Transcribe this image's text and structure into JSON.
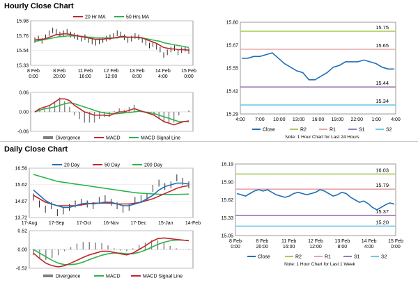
{
  "page": {
    "hourly_title": "Hourly Close Chart",
    "daily_title": "Daily Close Chart"
  },
  "colors": {
    "red": "#c0262d",
    "green": "#2ab34a",
    "blue": "#1f6fb4",
    "gray": "#808080",
    "r2": "#a6cc55",
    "r1": "#e8a6a6",
    "s1": "#9a78b8",
    "s2": "#6fc7e6"
  },
  "chart_data": [
    {
      "id": "hourly-price",
      "type": "line",
      "legend": [
        "20 Hr MA",
        "50 Hrs MA"
      ],
      "ylim": [
        15.33,
        15.98
      ],
      "y_ticks": [
        "15.98",
        "15.76",
        "15.54",
        "15.33"
      ],
      "x_ticks": [
        [
          "8 Feb",
          "0:00"
        ],
        [
          "8 Feb",
          "20:00"
        ],
        [
          "11 Feb",
          "16:00"
        ],
        [
          "12 Feb",
          "12:00"
        ],
        [
          "13 Feb",
          "8:00"
        ],
        [
          "14 Feb",
          "4:00"
        ],
        [
          "15 Feb",
          "0:00"
        ]
      ],
      "price": [
        15.7,
        15.72,
        15.69,
        15.74,
        15.8,
        15.84,
        15.82,
        15.78,
        15.8,
        15.82,
        15.78,
        15.76,
        15.74,
        15.72,
        15.74,
        15.7,
        15.68,
        15.66,
        15.68,
        15.7,
        15.72,
        15.74,
        15.76,
        15.8,
        15.78,
        15.74,
        15.7,
        15.72,
        15.76,
        15.74,
        15.7,
        15.66,
        15.62,
        15.64,
        15.6,
        15.56,
        15.48,
        15.52,
        15.56,
        15.58,
        15.52,
        15.55,
        15.57,
        15.54
      ],
      "ma20": [
        15.7,
        15.71,
        15.71,
        15.72,
        15.74,
        15.76,
        15.78,
        15.78,
        15.79,
        15.79,
        15.78,
        15.77,
        15.76,
        15.75,
        15.74,
        15.73,
        15.72,
        15.71,
        15.71,
        15.71,
        15.72,
        15.72,
        15.73,
        15.74,
        15.75,
        15.75,
        15.74,
        15.74,
        15.74,
        15.74,
        15.73,
        15.71,
        15.69,
        15.67,
        15.65,
        15.62,
        15.59,
        15.58,
        15.57,
        15.57,
        15.56,
        15.56,
        15.56,
        15.55
      ],
      "ma50": [
        15.68,
        15.69,
        15.7,
        15.71,
        15.72,
        15.73,
        15.74,
        15.75,
        15.75,
        15.76,
        15.76,
        15.76,
        15.76,
        15.75,
        15.75,
        15.74,
        15.74,
        15.73,
        15.73,
        15.73,
        15.73,
        15.73,
        15.73,
        15.73,
        15.74,
        15.74,
        15.74,
        15.74,
        15.74,
        15.73,
        15.73,
        15.72,
        15.71,
        15.7,
        15.69,
        15.68,
        15.66,
        15.65,
        15.64,
        15.63,
        15.62,
        15.61,
        15.6,
        15.59
      ]
    },
    {
      "id": "hourly-macd",
      "type": "line",
      "legend": [
        "Divergence",
        "MACD",
        "MACD Signal Line"
      ],
      "ylim": [
        -0.06,
        0.06
      ],
      "y_ticks": [
        "0.06",
        "0.00",
        "-0.06"
      ],
      "macd": [
        0.0,
        0.01,
        0.015,
        0.02,
        0.03,
        0.04,
        0.04,
        0.035,
        0.02,
        0.01,
        0.0,
        -0.005,
        -0.01,
        -0.01,
        -0.01,
        -0.012,
        -0.005,
        0.0,
        0.0,
        0.005,
        0.01,
        0.005,
        0.0,
        -0.005,
        -0.01,
        -0.02,
        -0.03,
        -0.035,
        -0.04,
        -0.035,
        -0.03,
        -0.028
      ],
      "signal": [
        0.0,
        0.005,
        0.01,
        0.012,
        0.015,
        0.02,
        0.025,
        0.028,
        0.025,
        0.02,
        0.015,
        0.01,
        0.005,
        0.0,
        -0.003,
        -0.005,
        -0.006,
        -0.005,
        -0.003,
        -0.002,
        0.0,
        0.002,
        0.0,
        -0.002,
        -0.005,
        -0.01,
        -0.015,
        -0.02,
        -0.025,
        -0.03,
        -0.03,
        -0.03
      ]
    },
    {
      "id": "hourly-levels",
      "type": "line",
      "legend": [
        "Close",
        "R2",
        "R1",
        "S1",
        "S2"
      ],
      "ylim": [
        15.29,
        15.8
      ],
      "y_ticks": [
        "15.80",
        "15.67",
        "15.55",
        "15.42",
        "15.29"
      ],
      "x_ticks": [
        "4:00",
        "7:00",
        "10:00",
        "13:00",
        "16:00",
        "19:00",
        "22:00",
        "1:00",
        "4:00"
      ],
      "levels": {
        "R2": 15.75,
        "R1": 15.65,
        "S1": 15.44,
        "S2": 15.34
      },
      "level_labels": {
        "R2": "15.75",
        "R1": "15.65",
        "S1": "15.44",
        "S2": "15.34"
      },
      "close": [
        15.6,
        15.6,
        15.61,
        15.61,
        15.62,
        15.63,
        15.6,
        15.57,
        15.55,
        15.53,
        15.52,
        15.48,
        15.48,
        15.5,
        15.52,
        15.55,
        15.56,
        15.58,
        15.58,
        15.58,
        15.59,
        15.58,
        15.57,
        15.55,
        15.54,
        15.54
      ],
      "note": "Note: 1 Hour Chart for Last 24 Hours"
    },
    {
      "id": "daily-price",
      "type": "line",
      "legend": [
        "20 Day",
        "50 Day",
        "200 Day"
      ],
      "ylim": [
        13.72,
        16.56
      ],
      "y_ticks": [
        "16.56",
        "15.62",
        "14.67",
        "13.72"
      ],
      "x_ticks": [
        "17-Aug",
        "17-Sep",
        "17-Oct",
        "16-Nov",
        "17-Dec",
        "15-Jan",
        "14-Feb"
      ],
      "price": [
        14.9,
        14.5,
        14.2,
        14.4,
        14.0,
        14.1,
        14.3,
        14.5,
        14.6,
        14.5,
        14.4,
        14.7,
        14.8,
        14.6,
        14.4,
        14.2,
        14.3,
        14.7,
        14.8,
        14.9,
        15.4,
        15.7,
        15.5,
        15.6,
        16.0,
        15.8,
        15.6
      ],
      "ma20": [
        15.3,
        15.0,
        14.7,
        14.5,
        14.4,
        14.3,
        14.3,
        14.4,
        14.5,
        14.55,
        14.5,
        14.55,
        14.6,
        14.6,
        14.5,
        14.4,
        14.4,
        14.5,
        14.6,
        14.8,
        15.0,
        15.3,
        15.5,
        15.6,
        15.7,
        15.7,
        15.65
      ],
      "ma50": [
        15.0,
        14.8,
        14.6,
        14.5,
        14.4,
        14.4,
        14.4,
        14.4,
        14.45,
        14.5,
        14.55,
        14.55,
        14.55,
        14.55,
        14.5,
        14.5,
        14.5,
        14.55,
        14.6,
        14.7,
        14.8,
        14.95,
        15.1,
        15.25,
        15.4,
        15.5,
        15.55
      ],
      "ma200": [
        16.2,
        16.1,
        16.0,
        15.9,
        15.8,
        15.75,
        15.7,
        15.65,
        15.6,
        15.55,
        15.5,
        15.45,
        15.4,
        15.35,
        15.3,
        15.25,
        15.2,
        15.15,
        15.12,
        15.1,
        15.08,
        15.06,
        15.05,
        15.05,
        15.05,
        15.06,
        15.07
      ]
    },
    {
      "id": "daily-macd",
      "type": "line",
      "legend": [
        "Divergence",
        "MACD",
        "MACD Signal Line"
      ],
      "ylim": [
        -0.52,
        0.52
      ],
      "y_ticks": [
        "0.52",
        "0.00",
        "-0.52"
      ],
      "macd": [
        -0.1,
        -0.25,
        -0.38,
        -0.45,
        -0.48,
        -0.45,
        -0.38,
        -0.3,
        -0.22,
        -0.15,
        -0.1,
        -0.05,
        -0.05,
        -0.08,
        -0.12,
        -0.15,
        -0.1,
        0.0,
        0.1,
        0.22,
        0.3,
        0.32,
        0.3,
        0.28,
        0.26,
        0.24
      ],
      "signal": [
        0.0,
        -0.1,
        -0.2,
        -0.3,
        -0.38,
        -0.42,
        -0.42,
        -0.4,
        -0.35,
        -0.28,
        -0.22,
        -0.16,
        -0.12,
        -0.1,
        -0.1,
        -0.12,
        -0.12,
        -0.08,
        -0.02,
        0.06,
        0.14,
        0.2,
        0.24,
        0.26,
        0.26,
        0.25
      ]
    },
    {
      "id": "daily-levels",
      "type": "line",
      "legend": [
        "Close",
        "R2",
        "R1",
        "S1",
        "S2"
      ],
      "ylim": [
        15.05,
        16.19
      ],
      "y_ticks": [
        "16.19",
        "15.90",
        "15.62",
        "15.33",
        "15.05"
      ],
      "x_ticks": [
        [
          "8 Feb",
          "0:00"
        ],
        [
          "8 Feb",
          "20:00"
        ],
        [
          "11 Feb",
          "16:00"
        ],
        [
          "12 Feb",
          "12:00"
        ],
        [
          "13 Feb",
          "8:00"
        ],
        [
          "14 Feb",
          "4:00"
        ],
        [
          "15 Feb",
          "0:00"
        ]
      ],
      "levels": {
        "R2": 16.03,
        "R1": 15.79,
        "S1": 15.37,
        "S2": 15.2
      },
      "level_labels": {
        "R2": "16.03",
        "R1": "15.79",
        "S1": "15.37",
        "S2": "15.20"
      },
      "close": [
        15.72,
        15.7,
        15.68,
        15.72,
        15.76,
        15.78,
        15.76,
        15.78,
        15.74,
        15.7,
        15.68,
        15.66,
        15.68,
        15.72,
        15.74,
        15.72,
        15.7,
        15.72,
        15.74,
        15.78,
        15.76,
        15.72,
        15.68,
        15.7,
        15.74,
        15.72,
        15.66,
        15.62,
        15.58,
        15.6,
        15.56,
        15.5,
        15.46,
        15.5,
        15.54,
        15.57,
        15.55
      ],
      "note": "Note: 1 Hour Chart for Last 1 Week"
    }
  ]
}
